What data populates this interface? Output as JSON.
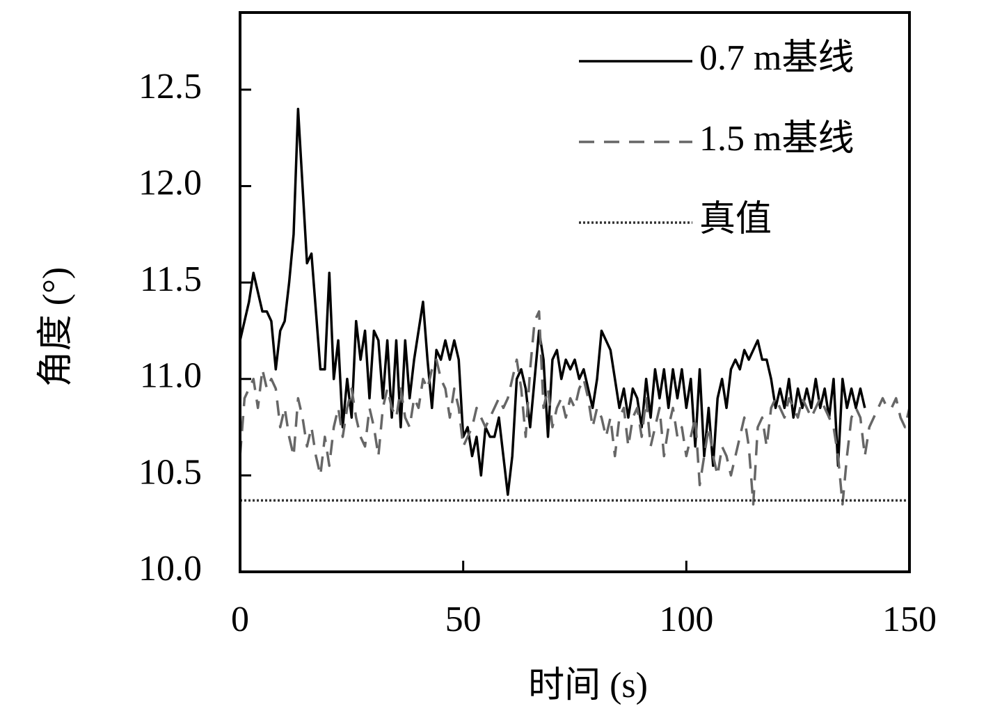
{
  "chart_data": {
    "type": "line",
    "xlabel": "时间 (s)",
    "ylabel": "角度 (°)",
    "xlim": [
      0,
      150
    ],
    "xticks": [
      0,
      50,
      100,
      150
    ],
    "ylim": [
      10,
      12.9
    ],
    "yticks": [
      {
        "value": 10,
        "label": "10.0"
      },
      {
        "value": 10.5,
        "label": "10.5"
      },
      {
        "value": 11,
        "label": "11.0"
      },
      {
        "value": 11.5,
        "label": "11.5"
      },
      {
        "value": 12,
        "label": "12.0"
      },
      {
        "value": 12.5,
        "label": "12.5"
      }
    ],
    "legend": "upper right",
    "x": [
      0,
      1,
      2,
      3,
      4,
      5,
      6,
      7,
      8,
      9,
      10,
      11,
      12,
      13,
      14,
      15,
      16,
      17,
      18,
      19,
      20,
      21,
      22,
      23,
      24,
      25,
      26,
      27,
      28,
      29,
      30,
      31,
      32,
      33,
      34,
      35,
      36,
      37,
      38,
      39,
      40,
      41,
      42,
      43,
      44,
      45,
      46,
      47,
      48,
      49,
      50,
      51,
      52,
      53,
      54,
      55,
      56,
      57,
      58,
      59,
      60,
      61,
      62,
      63,
      64,
      65,
      66,
      67,
      68,
      69,
      70,
      71,
      72,
      73,
      74,
      75,
      76,
      77,
      78,
      79,
      80,
      81,
      82,
      83,
      84,
      85,
      86,
      87,
      88,
      89,
      90,
      91,
      92,
      93,
      94,
      95,
      96,
      97,
      98,
      99,
      100,
      101,
      102,
      103,
      104,
      105,
      106,
      107,
      108,
      109,
      110,
      111,
      112,
      113,
      114,
      115,
      116,
      117,
      118,
      119,
      120,
      121,
      122,
      123,
      124,
      125,
      126,
      127,
      128,
      129,
      130,
      131,
      132,
      133,
      134,
      135,
      136,
      137,
      138,
      139,
      140,
      141,
      142,
      143,
      144,
      145,
      146,
      147,
      148,
      149,
      150
    ],
    "series": [
      {
        "name": "0.7 m基线",
        "color": "#000000",
        "style": "solid",
        "values": [
          11.2,
          11.3,
          11.4,
          11.55,
          11.45,
          11.35,
          11.35,
          11.3,
          11.05,
          11.25,
          11.3,
          11.5,
          11.75,
          12.4,
          12.0,
          11.6,
          11.65,
          11.35,
          11.05,
          11.05,
          11.55,
          11.0,
          11.2,
          10.75,
          11.0,
          10.8,
          11.3,
          11.1,
          11.25,
          10.9,
          11.25,
          11.2,
          10.9,
          11.2,
          10.8,
          11.2,
          10.75,
          11.2,
          10.9,
          11.1,
          11.25,
          11.4,
          11.1,
          10.85,
          11.15,
          11.1,
          11.2,
          11.1,
          11.2,
          11.1,
          10.7,
          10.75,
          10.6,
          10.7,
          10.5,
          10.75,
          10.7,
          10.7,
          10.8,
          10.6,
          10.4,
          10.6,
          11.0,
          11.05,
          10.95,
          10.75,
          11.0,
          11.25,
          11.1,
          10.7,
          11.1,
          11.15,
          11.0,
          11.1,
          11.05,
          11.1,
          11.0,
          11.05,
          10.95,
          10.85,
          11.0,
          11.25,
          11.2,
          11.15,
          11.0,
          10.85,
          10.95,
          10.8,
          10.95,
          10.9,
          10.75,
          11.0,
          10.8,
          11.05,
          10.9,
          11.05,
          10.85,
          11.05,
          10.9,
          11.05,
          10.85,
          11.0,
          10.65,
          11.05,
          10.6,
          10.85,
          10.55,
          10.9,
          11.0,
          10.85,
          11.05,
          11.1,
          11.05,
          11.15,
          11.1,
          11.15,
          11.2,
          11.1,
          11.1,
          11.0,
          10.85,
          10.95,
          10.85,
          11.0,
          10.8,
          10.95,
          10.85,
          10.95,
          10.85,
          11.0,
          10.85,
          10.95,
          10.8,
          11.0,
          10.55,
          11.0,
          10.85,
          10.95,
          10.85,
          10.95,
          10.85,
          null,
          null,
          null,
          null,
          null,
          null,
          null,
          null,
          null,
          null
        ]
      },
      {
        "name": "1.5 m基线",
        "color": "#666666",
        "style": "dashed",
        "values": [
          10.6,
          10.9,
          10.95,
          11.0,
          10.85,
          11.05,
          10.95,
          11.0,
          10.95,
          10.75,
          10.85,
          10.7,
          10.6,
          10.9,
          10.8,
          10.65,
          10.75,
          10.6,
          10.5,
          10.7,
          10.55,
          10.75,
          10.85,
          10.7,
          10.85,
          10.95,
          10.8,
          10.7,
          10.65,
          10.85,
          10.75,
          10.6,
          10.85,
          10.95,
          10.85,
          10.8,
          10.95,
          10.8,
          10.75,
          10.9,
          10.85,
          11.0,
          10.95,
          11.05,
          11.1,
          11.0,
          10.95,
          10.8,
          10.95,
          10.85,
          10.65,
          10.7,
          10.75,
          10.85,
          10.8,
          10.75,
          10.8,
          10.85,
          10.9,
          10.85,
          10.9,
          11.0,
          11.1,
          10.95,
          10.7,
          11.05,
          11.3,
          11.35,
          10.85,
          10.95,
          10.75,
          10.85,
          10.9,
          10.8,
          10.9,
          10.85,
          10.95,
          11.0,
          10.9,
          10.75,
          10.85,
          10.8,
          10.7,
          10.8,
          10.6,
          10.8,
          10.85,
          10.65,
          10.8,
          10.85,
          10.7,
          10.9,
          10.65,
          10.75,
          10.85,
          10.6,
          10.75,
          10.85,
          10.7,
          10.75,
          10.6,
          10.7,
          10.8,
          10.45,
          10.6,
          10.75,
          10.6,
          10.5,
          10.65,
          10.6,
          10.5,
          10.6,
          10.7,
          10.8,
          10.65,
          10.35,
          10.75,
          10.8,
          10.65,
          10.85,
          10.9,
          10.85,
          10.8,
          10.9,
          10.85,
          10.8,
          10.9,
          10.85,
          10.8,
          10.85,
          10.9,
          10.85,
          10.8,
          10.75,
          10.6,
          10.35,
          10.6,
          10.8,
          10.85,
          10.8,
          10.6,
          10.75,
          10.8,
          10.85,
          10.9,
          10.85,
          10.85,
          10.9,
          10.8,
          10.75,
          10.85
        ]
      },
      {
        "name": "真值",
        "color": "#333333",
        "style": "dotted",
        "x": [
          0,
          150
        ],
        "values": [
          10.37,
          10.37
        ]
      }
    ]
  }
}
